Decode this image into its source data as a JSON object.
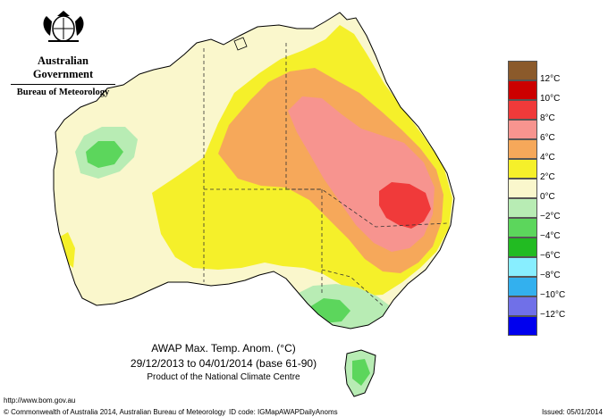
{
  "header": {
    "org": "Australian Government",
    "agency": "Bureau of Meteorology"
  },
  "map": {
    "title_line1": "AWAP Max. Temp. Anom. (",
    "title_unit": "°C)",
    "title_line2": "29/12/2013 to 04/01/2014 (base 61-90)",
    "title_line3": "Product of the National Climate Centre",
    "colors": {
      "c12plus": "#8B5A2B",
      "c10": "#CC0000",
      "c8": "#F03A3A",
      "c6": "#F7948F",
      "c4": "#F6A85A",
      "c2": "#F5F02A",
      "c0": "#F7E98A",
      "cm0": "#FAF7CC",
      "cm2": "#B8ECB4",
      "cm4": "#5CD65C",
      "cm6": "#22BB22",
      "cm8": "#88EEFF",
      "cm10": "#33B0EE",
      "cm12": "#7070E8",
      "cmin": "#0000EE"
    }
  },
  "legend": {
    "labels": [
      "12°C",
      "10°C",
      "8°C",
      "6°C",
      "4°C",
      "2°C",
      "0°C",
      "−2°C",
      "−4°C",
      "−6°C",
      "−8°C",
      "−10°C",
      "−12°C"
    ],
    "colors": [
      "#8B5A2B",
      "#CC0000",
      "#F03A3A",
      "#F7948F",
      "#F6A85A",
      "#F5F02A",
      "#FAF7CC",
      "#B8ECB4",
      "#5CD65C",
      "#22BB22",
      "#88EEFF",
      "#33B0EE",
      "#7070E8",
      "#0000EE"
    ]
  },
  "footer": {
    "url": "http://www.bom.gov.au",
    "copyright": "© Commonwealth of Australia 2014, Australian Bureau of Meteorology",
    "id_code": "ID code: IGMapAWAPDailyAnoms",
    "issued": "Issued: 05/01/2014"
  }
}
